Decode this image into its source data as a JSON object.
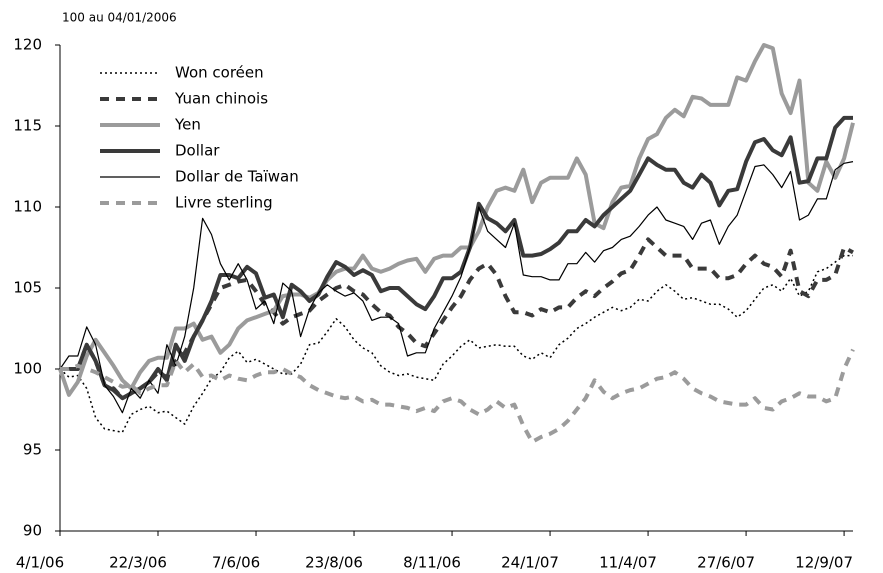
{
  "chart_data": {
    "type": "line",
    "subtitle": "100 au 04/01/2006",
    "categories": [
      "4/1/06",
      null,
      null,
      null,
      null,
      null,
      null,
      null,
      null,
      null,
      null,
      "22/3/06",
      null,
      null,
      null,
      null,
      null,
      null,
      null,
      null,
      null,
      null,
      "7/6/06",
      null,
      null,
      null,
      null,
      null,
      null,
      null,
      null,
      null,
      null,
      "23/8/06",
      null,
      null,
      null,
      null,
      null,
      null,
      null,
      null,
      null,
      null,
      "8/11/06",
      null,
      null,
      null,
      null,
      null,
      null,
      null,
      null,
      null,
      null,
      "24/1/07",
      null,
      null,
      null,
      null,
      null,
      null,
      null,
      null,
      null,
      null,
      "11/4/07",
      null,
      null,
      null,
      null,
      null,
      null,
      null,
      null,
      null,
      null,
      "27/6/07",
      null,
      null,
      null,
      null,
      null,
      null,
      null,
      null,
      null,
      null,
      "12/9/07",
      null
    ],
    "ylim": [
      90,
      120
    ],
    "yticks": [
      90,
      95,
      100,
      105,
      110,
      115,
      120
    ],
    "series": [
      {
        "name": "Won coréen",
        "color": "#000000",
        "dash": "dotted",
        "width": 1.5,
        "values": [
          100,
          99.5,
          99.6,
          98.8,
          97,
          96.3,
          96.2,
          96.1,
          97.2,
          97.5,
          97.7,
          97.3,
          97.4,
          97,
          96.6,
          97.7,
          98.5,
          99.4,
          99.8,
          100.7,
          101.1,
          100.4,
          100.6,
          100.3,
          100,
          99.7,
          99.7,
          100.3,
          101.5,
          101.6,
          102.3,
          103.1,
          102.6,
          101.8,
          101.3,
          101,
          100.2,
          99.8,
          99.6,
          99.7,
          99.5,
          99.4,
          99.3,
          100.3,
          100.8,
          101.4,
          101.8,
          101.3,
          101.4,
          101.5,
          101.4,
          101.4,
          100.8,
          100.6,
          101,
          100.7,
          101.5,
          101.9,
          102.5,
          102.8,
          103.2,
          103.5,
          103.8,
          103.6,
          103.8,
          104.3,
          104.2,
          104.8,
          105.2,
          104.8,
          104.3,
          104.4,
          104.2,
          104,
          104,
          103.7,
          103.2,
          103.6,
          104.3,
          105,
          105.2,
          104.8,
          105.6,
          104.5,
          104.8,
          106,
          106.2,
          106.6,
          107,
          107
        ]
      },
      {
        "name": "Yuan chinois",
        "color": "#3a3a3a",
        "dash": "dashed",
        "width": 4,
        "values": [
          100,
          100,
          100,
          101.5,
          100.5,
          99,
          98.8,
          98.2,
          98.5,
          98.8,
          99.2,
          99.8,
          99.5,
          100.5,
          101,
          102,
          103,
          104,
          105,
          105.2,
          105.4,
          105.5,
          104.8,
          104,
          103.5,
          102.8,
          103.2,
          103.4,
          103.6,
          104.2,
          104.6,
          105,
          105.2,
          104.8,
          104.6,
          104,
          103.5,
          103.3,
          102.6,
          102.2,
          101.6,
          101.4,
          102.2,
          103,
          103.8,
          104.5,
          105.5,
          106.2,
          106.5,
          105.8,
          104.5,
          103.5,
          103.5,
          103.3,
          103.7,
          103.5,
          103.8,
          103.8,
          104.4,
          104.8,
          104.5,
          105,
          105.4,
          105.9,
          106.1,
          107,
          108,
          107.5,
          107,
          107,
          107,
          106.2,
          106.2,
          106.2,
          105.6,
          105.6,
          105.8,
          106.5,
          107,
          106.5,
          106.3,
          105.7,
          107.3,
          104.8,
          104.5,
          105.5,
          105.5,
          105.8,
          107.5,
          107.2
        ]
      },
      {
        "name": "Yen",
        "color": "#9b9b9b",
        "dash": "solid",
        "width": 4,
        "values": [
          100,
          98.4,
          99.2,
          100.8,
          101.8,
          101,
          100.2,
          99.3,
          98.8,
          99.8,
          100.5,
          100.7,
          100.7,
          102.5,
          102.5,
          102.8,
          101.8,
          102,
          101,
          101.5,
          102.5,
          103,
          103.2,
          103.4,
          103.6,
          104.5,
          104.6,
          104.6,
          104.4,
          104.7,
          105.5,
          106,
          106.2,
          106.2,
          107,
          106.2,
          106,
          106.2,
          106.5,
          106.7,
          106.8,
          106,
          106.8,
          107,
          107,
          107.5,
          107.5,
          108.5,
          110,
          111,
          111.2,
          111,
          112.3,
          110.3,
          111.5,
          111.8,
          111.8,
          111.8,
          113,
          112,
          109,
          108.7,
          110.3,
          111.2,
          111.3,
          113,
          114.2,
          114.5,
          115.5,
          116,
          115.6,
          116.8,
          116.7,
          116.3,
          116.3,
          116.3,
          118,
          117.8,
          119,
          120,
          119.8,
          117,
          115.8,
          117.8,
          111.5,
          111,
          112.8,
          111.8,
          113,
          115.2
        ]
      },
      {
        "name": "Dollar",
        "color": "#3a3a3a",
        "dash": "solid",
        "width": 4,
        "values": [
          100,
          100,
          100,
          101.5,
          100.5,
          99,
          98.7,
          98.2,
          98.5,
          98.8,
          99.2,
          100,
          99.3,
          101.5,
          100.5,
          102,
          103,
          104.2,
          105.8,
          105.8,
          105.6,
          106.3,
          105.9,
          104.4,
          104.6,
          103.2,
          105.2,
          104.8,
          104.2,
          104.6,
          105.7,
          106.6,
          106.3,
          105.8,
          106.1,
          105.8,
          104.8,
          105,
          105,
          104.5,
          104,
          103.7,
          104.5,
          105.6,
          105.6,
          106,
          107.5,
          110.2,
          109.3,
          109,
          108.5,
          109.2,
          107,
          107,
          107.1,
          107.4,
          107.8,
          108.5,
          108.5,
          109.2,
          108.8,
          109.5,
          110,
          110.5,
          111,
          112,
          113,
          112.6,
          112.3,
          112.3,
          111.5,
          111.2,
          112,
          111.5,
          110.1,
          111,
          111.1,
          112.8,
          114,
          114.2,
          113.5,
          113.2,
          114.3,
          111.5,
          111.6,
          113,
          113,
          114.9,
          115.5,
          115.5
        ]
      },
      {
        "name": "Dollar de Taïwan",
        "color": "#000000",
        "dash": "solid",
        "width": 1.2,
        "values": [
          100,
          100.8,
          100.8,
          102.6,
          101.5,
          99,
          98.3,
          97.3,
          98.8,
          98.2,
          99.3,
          98.5,
          101.5,
          100.2,
          102,
          105,
          109.3,
          108.3,
          106.5,
          105.5,
          106.5,
          105.5,
          103.7,
          104.2,
          102.8,
          105.3,
          104.8,
          102,
          103.7,
          104.7,
          105.2,
          104.8,
          104.5,
          104.7,
          104.2,
          103,
          103.2,
          103.2,
          102.8,
          100.8,
          101,
          101,
          102.5,
          103.5,
          104.5,
          105.7,
          107.5,
          110,
          108.5,
          108,
          107.5,
          109,
          105.8,
          105.7,
          105.7,
          105.5,
          105.5,
          106.5,
          106.5,
          107.2,
          106.6,
          107.3,
          107.5,
          108,
          108.2,
          108.8,
          109.5,
          110,
          109.2,
          109,
          108.8,
          108,
          109,
          109.2,
          107.7,
          108.8,
          109.5,
          111,
          112.5,
          112.6,
          112,
          111.2,
          112.2,
          109.2,
          109.5,
          110.5,
          110.5,
          112.3,
          112.7,
          112.8
        ]
      },
      {
        "name": "Livre sterling",
        "color": "#9b9b9b",
        "dash": "dashed",
        "width": 4,
        "values": [
          100,
          100,
          100.2,
          100,
          99.8,
          99.5,
          99.2,
          98.9,
          99,
          98.5,
          98.8,
          99,
          99,
          100.5,
          99.8,
          100.3,
          99.5,
          99.6,
          99.3,
          99.6,
          99.4,
          99.3,
          99.6,
          99.8,
          99.8,
          100,
          99.7,
          99.5,
          99,
          98.7,
          98.5,
          98.3,
          98.2,
          98.3,
          98,
          98.1,
          97.8,
          97.8,
          97.7,
          97.6,
          97.4,
          97.6,
          97.4,
          98,
          98.2,
          98,
          97.5,
          97.2,
          97.5,
          98,
          97.6,
          97.8,
          96.5,
          95.5,
          95.8,
          96,
          96.3,
          96.8,
          97.5,
          98.2,
          99.3,
          98.6,
          98.2,
          98.5,
          98.7,
          98.8,
          99.1,
          99.4,
          99.5,
          99.8,
          99.4,
          98.8,
          98.5,
          98.3,
          98,
          97.9,
          97.8,
          97.8,
          98.2,
          97.6,
          97.5,
          98,
          98.2,
          98.5,
          98.3,
          98.3,
          98,
          98.2,
          100,
          101.2
        ]
      }
    ]
  }
}
